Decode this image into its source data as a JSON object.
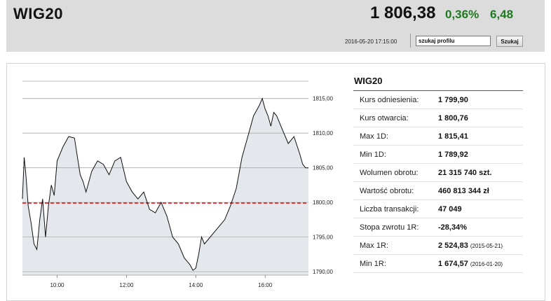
{
  "header": {
    "title": "WIG20",
    "price": "1 806,38",
    "change_pct": "0,36%",
    "change_abs": "6,48",
    "datetime": "2016-05-20 17:15:00",
    "search_value": "szukaj profilu",
    "search_button": "Szukaj"
  },
  "table": {
    "title": "WIG20",
    "rows": [
      {
        "label": "Kurs odniesienia:",
        "value": "1 799,90",
        "date": ""
      },
      {
        "label": "Kurs otwarcia:",
        "value": "1 800,76",
        "date": ""
      },
      {
        "label": "Max 1D:",
        "value": "1 815,41",
        "date": ""
      },
      {
        "label": "Min 1D:",
        "value": "1 789,92",
        "date": ""
      },
      {
        "label": "Wolumen obrotu:",
        "value": "21 315 740 szt.",
        "date": ""
      },
      {
        "label": "Wartość obrotu:",
        "value": "460 813 344 zł",
        "date": ""
      },
      {
        "label": "Liczba transakcji:",
        "value": "47 049",
        "date": ""
      },
      {
        "label": "Stopa zwrotu 1R:",
        "value": "-28,34%",
        "date": ""
      },
      {
        "label": "Max 1R:",
        "value": "2 524,83",
        "date": "(2015-05-21)"
      },
      {
        "label": "Min 1R:",
        "value": "1 674,57",
        "date": "(2016-01-20)"
      }
    ]
  },
  "colors": {
    "up": "#1f7a1f",
    "line": "#111111",
    "area": "#e4e7ec",
    "reference": "#d42020"
  },
  "chart_data": {
    "type": "area",
    "title": "",
    "xlabel": "",
    "ylabel": "",
    "x_ticks": [
      "10:00",
      "12:00",
      "14:00",
      "16:00"
    ],
    "y_ticks": [
      "1790,00",
      "1795,00",
      "1800,00",
      "1805,00",
      "1810,00",
      "1815,00"
    ],
    "ylim": [
      1789.5,
      1817.5
    ],
    "xlim": [
      "09:00",
      "17:15"
    ],
    "reference_line": 1799.9,
    "grid": true,
    "series": [
      {
        "x": [
          "09:00",
          "09:03",
          "09:06",
          "09:10",
          "09:15",
          "09:20",
          "09:25",
          "09:30",
          "09:35",
          "09:40",
          "09:45",
          "09:50",
          "09:55",
          "10:00",
          "10:10",
          "10:20",
          "10:30",
          "10:40",
          "10:45",
          "10:50",
          "11:00",
          "11:10",
          "11:20",
          "11:30",
          "11:40",
          "11:50",
          "12:00",
          "12:10",
          "12:20",
          "12:30",
          "12:40",
          "12:50",
          "13:00",
          "13:10",
          "13:20",
          "13:30",
          "13:40",
          "13:45",
          "13:50",
          "13:55",
          "14:00",
          "14:05",
          "14:10",
          "14:15",
          "14:20",
          "14:30",
          "14:40",
          "14:50",
          "15:00",
          "15:10",
          "15:20",
          "15:30",
          "15:40",
          "15:50",
          "15:55",
          "16:00",
          "16:05",
          "16:10",
          "16:15",
          "16:20",
          "16:30",
          "16:40",
          "16:50",
          "17:00",
          "17:05",
          "17:10",
          "17:15"
        ],
        "y": [
          1800.5,
          1806.5,
          1804.0,
          1799.5,
          1797.0,
          1794.0,
          1793.2,
          1797.5,
          1800.5,
          1795.0,
          1799.5,
          1802.5,
          1801.0,
          1806.0,
          1808.0,
          1809.5,
          1809.3,
          1804.0,
          1803.0,
          1801.5,
          1804.5,
          1806.0,
          1805.5,
          1804.0,
          1806.0,
          1806.5,
          1803.0,
          1801.5,
          1800.5,
          1801.5,
          1799.0,
          1798.5,
          1800.0,
          1798.0,
          1795.0,
          1794.0,
          1792.0,
          1791.5,
          1791.0,
          1790.2,
          1790.5,
          1792.5,
          1795.0,
          1794.0,
          1794.5,
          1795.5,
          1796.5,
          1797.5,
          1799.5,
          1802.0,
          1806.5,
          1809.5,
          1812.5,
          1814.0,
          1815.0,
          1813.5,
          1812.5,
          1811.0,
          1813.0,
          1812.5,
          1810.5,
          1808.5,
          1809.5,
          1807.0,
          1805.5,
          1805.0,
          1805.0
        ]
      }
    ]
  }
}
